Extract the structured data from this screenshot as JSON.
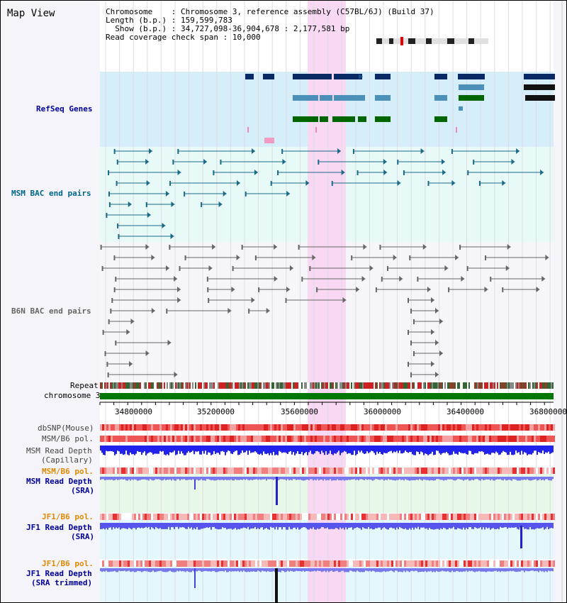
{
  "title": "Map View",
  "info": {
    "chromosome_key": "Chromosome    ",
    "chromosome_val": "Chromosome 3, reference assembly (C57BL/6J) (Build 37)",
    "length_key": "Length (b.p.) ",
    "length_val": "159,599,783",
    "show_key": "  Show (b.p.) ",
    "show_val": "34,727,098-36,904,678 : 2,177,581 bp",
    "span_key": "Read coverage check span",
    "span_val": "10,000"
  },
  "tracks": [
    {
      "name": "RefSeq Genes",
      "color": "#000099"
    },
    {
      "name": "MSM BAC end pairs",
      "color": "#006688"
    },
    {
      "name": "B6N BAC end pairs",
      "color": "#666666"
    },
    {
      "name": "Repeat",
      "color": "#000000"
    },
    {
      "name": "chromosome 3",
      "color": "#000000"
    },
    {
      "name": "dbSNP(Mouse)",
      "color": "#444444"
    },
    {
      "name": "MSM/B6 pol.",
      "color": "#444444"
    },
    {
      "name": "MSM Read Depth",
      "color": "#444444"
    },
    {
      "name": "(Capillary)",
      "color": "#444444"
    },
    {
      "name": "MSM/B6 pol.",
      "color": "#e08800"
    },
    {
      "name": "MSM Read Depth",
      "color": "#000099"
    },
    {
      "name": "(SRA)",
      "color": "#000099"
    },
    {
      "name": "JF1/B6 pol.",
      "color": "#e08800"
    },
    {
      "name": "JF1 Read Depth",
      "color": "#000099"
    },
    {
      "name": "(SRA)",
      "color": "#000099"
    },
    {
      "name": "JF1/B6 pol.",
      "color": "#e08800"
    },
    {
      "name": "JF1 Read Depth",
      "color": "#000099"
    },
    {
      "name": "(SRA trimmed)",
      "color": "#000099"
    }
  ],
  "axis": {
    "ticks": [
      "34800000",
      "35200000",
      "35600000",
      "36000000",
      "36400000",
      "36800000"
    ],
    "start": 34727098,
    "end": 36904678
  },
  "colors": {
    "highlight": "#f9d8f4",
    "refseq_bg": "#d6eef9",
    "msm_bg": "#e8faf8",
    "gene_navy": "#0a2a66",
    "gene_teal": "#4a90b8",
    "gene_green": "#006600",
    "snp_red": "#ee4444",
    "depth_blue": "#2222ee",
    "depth_light": "#7777ee"
  }
}
